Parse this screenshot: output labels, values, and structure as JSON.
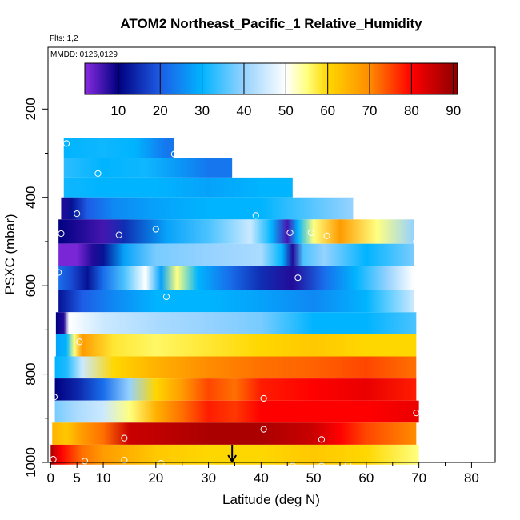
{
  "chart_data": {
    "type": "heatmap",
    "title": "ATOM2 Northeast_Pacific_1 Relative_Humidity",
    "flights_label": "Flts: 1,2",
    "dates_label": "MMDD: 0126,0129",
    "xlabel": "Latitude (deg N)",
    "ylabel": "PSXC (mbar)",
    "xlim": [
      -0.5,
      84.5
    ],
    "ylim": [
      1000,
      60
    ],
    "x_ticks": [
      0,
      5,
      10,
      20,
      30,
      40,
      50,
      60,
      70,
      80
    ],
    "y_ticks": [
      200,
      400,
      600,
      800,
      1000
    ],
    "colorbar": {
      "range": [
        2,
        91
      ],
      "ticks": [
        10,
        20,
        30,
        40,
        50,
        60,
        70,
        80,
        90
      ],
      "stops": [
        {
          "v": 2,
          "c": "#8a2be2"
        },
        {
          "v": 10,
          "c": "#000080"
        },
        {
          "v": 20,
          "c": "#1e5ce6"
        },
        {
          "v": 30,
          "c": "#00b4ff"
        },
        {
          "v": 40,
          "c": "#96d2ff"
        },
        {
          "v": 50,
          "c": "#ffffff"
        },
        {
          "v": 55,
          "c": "#ffff80"
        },
        {
          "v": 60,
          "c": "#ffd700"
        },
        {
          "v": 70,
          "c": "#ff8c00"
        },
        {
          "v": 80,
          "c": "#ff0000"
        },
        {
          "v": 91,
          "c": "#8b0000"
        }
      ]
    },
    "layers": [
      {
        "p_top": 265,
        "p_bot": 310,
        "lat_start": 2.5,
        "lat_end": 23.5,
        "values": [
          [
            2.5,
            30
          ],
          [
            10,
            31
          ],
          [
            16,
            30
          ],
          [
            22,
            23
          ],
          [
            23.5,
            23
          ]
        ]
      },
      {
        "p_top": 310,
        "p_bot": 355,
        "lat_start": 2.5,
        "lat_end": 34.5,
        "values": [
          [
            2.5,
            33
          ],
          [
            10,
            30
          ],
          [
            18,
            31
          ],
          [
            24,
            27
          ],
          [
            30,
            23
          ],
          [
            34.5,
            23
          ]
        ]
      },
      {
        "p_top": 355,
        "p_bot": 400,
        "lat_start": 2.5,
        "lat_end": 46,
        "values": [
          [
            2.5,
            31
          ],
          [
            10,
            30
          ],
          [
            20,
            30
          ],
          [
            30,
            28
          ],
          [
            40,
            30
          ],
          [
            46,
            30
          ]
        ]
      },
      {
        "p_top": 400,
        "p_bot": 450,
        "lat_start": 2,
        "lat_end": 57.5,
        "values": [
          [
            2,
            8
          ],
          [
            4,
            12
          ],
          [
            7,
            20
          ],
          [
            12,
            25
          ],
          [
            20,
            28
          ],
          [
            30,
            30
          ],
          [
            40,
            30
          ],
          [
            50,
            36
          ],
          [
            57.5,
            40
          ]
        ]
      },
      {
        "p_top": 450,
        "p_bot": 505,
        "lat_start": 1.5,
        "lat_end": 69,
        "values": [
          [
            1.5,
            10
          ],
          [
            6,
            8
          ],
          [
            10,
            6
          ],
          [
            14,
            15
          ],
          [
            22,
            28
          ],
          [
            30,
            35
          ],
          [
            38,
            45
          ],
          [
            42,
            30
          ],
          [
            45,
            6
          ],
          [
            47,
            30
          ],
          [
            50,
            55
          ],
          [
            55,
            68
          ],
          [
            62,
            55
          ],
          [
            69,
            40
          ]
        ]
      },
      {
        "p_top": 505,
        "p_bot": 555,
        "lat_start": 1.5,
        "lat_end": 69,
        "values": [
          [
            1.5,
            3
          ],
          [
            5,
            3
          ],
          [
            8,
            8
          ],
          [
            10,
            12
          ],
          [
            14,
            28
          ],
          [
            20,
            38
          ],
          [
            30,
            40
          ],
          [
            40,
            42
          ],
          [
            44,
            30
          ],
          [
            46,
            8
          ],
          [
            48,
            35
          ],
          [
            52,
            40
          ],
          [
            60,
            30
          ],
          [
            69,
            38
          ]
        ]
      },
      {
        "p_top": 555,
        "p_bot": 610,
        "lat_start": 1.5,
        "lat_end": 69,
        "values": [
          [
            1.5,
            22
          ],
          [
            4,
            18
          ],
          [
            7,
            12
          ],
          [
            10,
            22
          ],
          [
            14,
            35
          ],
          [
            18,
            50
          ],
          [
            21,
            28
          ],
          [
            24,
            55
          ],
          [
            28,
            30
          ],
          [
            34,
            22
          ],
          [
            40,
            15
          ],
          [
            46,
            8
          ],
          [
            52,
            22
          ],
          [
            58,
            30
          ],
          [
            64,
            40
          ],
          [
            69,
            50
          ]
        ]
      },
      {
        "p_top": 610,
        "p_bot": 660,
        "lat_start": 1.5,
        "lat_end": 69,
        "values": [
          [
            1.5,
            12
          ],
          [
            6,
            20
          ],
          [
            12,
            25
          ],
          [
            20,
            30
          ],
          [
            30,
            30
          ],
          [
            40,
            28
          ],
          [
            50,
            25
          ],
          [
            60,
            30
          ],
          [
            69,
            45
          ]
        ]
      },
      {
        "p_top": 660,
        "p_bot": 710,
        "lat_start": 1,
        "lat_end": 69.5,
        "values": [
          [
            1,
            10
          ],
          [
            2.5,
            8
          ],
          [
            3.5,
            50
          ],
          [
            10,
            45
          ],
          [
            20,
            42
          ],
          [
            30,
            40
          ],
          [
            40,
            38
          ],
          [
            50,
            30
          ],
          [
            60,
            30
          ],
          [
            69.5,
            35
          ]
        ]
      },
      {
        "p_top": 710,
        "p_bot": 760,
        "lat_start": 1,
        "lat_end": 69.5,
        "values": [
          [
            1,
            28
          ],
          [
            3,
            30
          ],
          [
            4.5,
            55
          ],
          [
            6,
            68
          ],
          [
            12,
            58
          ],
          [
            20,
            56
          ],
          [
            30,
            58
          ],
          [
            40,
            60
          ],
          [
            50,
            62
          ],
          [
            60,
            60
          ],
          [
            69.5,
            60
          ]
        ]
      },
      {
        "p_top": 760,
        "p_bot": 810,
        "lat_start": 0.8,
        "lat_end": 69.5,
        "values": [
          [
            0.8,
            30
          ],
          [
            3,
            32
          ],
          [
            6,
            45
          ],
          [
            12,
            60
          ],
          [
            20,
            65
          ],
          [
            30,
            70
          ],
          [
            40,
            72
          ],
          [
            50,
            73
          ],
          [
            60,
            75
          ],
          [
            69.5,
            72
          ]
        ]
      },
      {
        "p_top": 810,
        "p_bot": 860,
        "lat_start": 0.8,
        "lat_end": 69.5,
        "values": [
          [
            0.8,
            10
          ],
          [
            5,
            14
          ],
          [
            10,
            22
          ],
          [
            15,
            40
          ],
          [
            20,
            60
          ],
          [
            25,
            68
          ],
          [
            30,
            75
          ],
          [
            35,
            72
          ],
          [
            40,
            78
          ],
          [
            50,
            80
          ],
          [
            60,
            82
          ],
          [
            69.5,
            78
          ]
        ]
      },
      {
        "p_top": 860,
        "p_bot": 910,
        "lat_start": 0.8,
        "lat_end": 70,
        "values": [
          [
            0.8,
            38
          ],
          [
            5,
            42
          ],
          [
            10,
            45
          ],
          [
            15,
            55
          ],
          [
            20,
            65
          ],
          [
            25,
            72
          ],
          [
            30,
            78
          ],
          [
            35,
            76
          ],
          [
            40,
            80
          ],
          [
            50,
            80
          ],
          [
            60,
            80
          ],
          [
            70,
            82
          ]
        ]
      },
      {
        "p_top": 910,
        "p_bot": 960,
        "lat_start": 0.3,
        "lat_end": 69.5,
        "values": [
          [
            0.3,
            65
          ],
          [
            3,
            62
          ],
          [
            6,
            68
          ],
          [
            10,
            72
          ],
          [
            15,
            85
          ],
          [
            20,
            86
          ],
          [
            30,
            88
          ],
          [
            40,
            88
          ],
          [
            50,
            85
          ],
          [
            55,
            80
          ],
          [
            60,
            75
          ],
          [
            69.5,
            70
          ]
        ]
      },
      {
        "p_top": 960,
        "p_bot": 1005,
        "lat_start": 0,
        "lat_end": 70,
        "values": [
          [
            0,
            88
          ],
          [
            2,
            80
          ],
          [
            6,
            72
          ],
          [
            10,
            68
          ],
          [
            15,
            65
          ],
          [
            20,
            62
          ],
          [
            30,
            60
          ],
          [
            40,
            60
          ],
          [
            50,
            62
          ],
          [
            60,
            60
          ],
          [
            70,
            55
          ]
        ]
      }
    ],
    "sample_points": [
      [
        3,
        278
      ],
      [
        23.5,
        302
      ],
      [
        9,
        346
      ],
      [
        5,
        437
      ],
      [
        39,
        441
      ],
      [
        2,
        482
      ],
      [
        13,
        485
      ],
      [
        20,
        472
      ],
      [
        45.5,
        480
      ],
      [
        49.5,
        480
      ],
      [
        52.5,
        487
      ],
      [
        69.5,
        500
      ],
      [
        1.5,
        570
      ],
      [
        47,
        582
      ],
      [
        22,
        625
      ],
      [
        0.7,
        852
      ],
      [
        40.5,
        855
      ],
      [
        69.5,
        888
      ],
      [
        40.5,
        925
      ],
      [
        14,
        945
      ],
      [
        51.5,
        948
      ],
      [
        0.5,
        993
      ],
      [
        6.5,
        997
      ],
      [
        14,
        995
      ],
      [
        21,
        1002
      ],
      [
        46,
        1008
      ],
      [
        51.5,
        1008
      ],
      [
        56.5,
        1005
      ],
      [
        5.5,
        727
      ]
    ],
    "marker_lat": 34.5,
    "colors": {
      "axis": "#000000",
      "point_outline": "#ffffff"
    }
  }
}
